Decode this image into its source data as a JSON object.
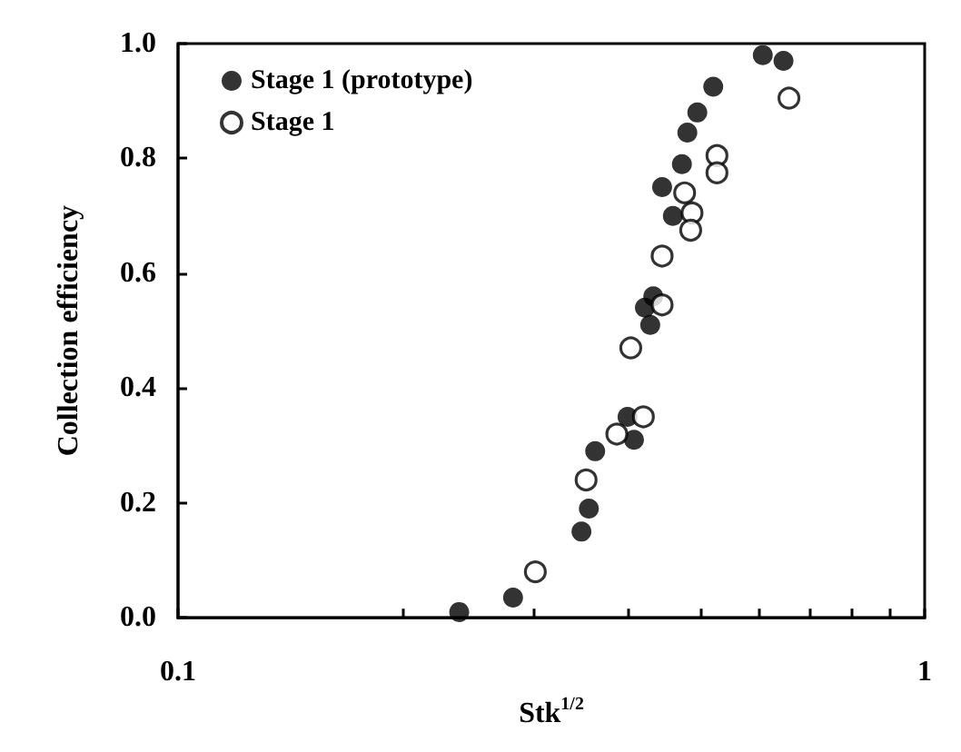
{
  "chart_data": {
    "type": "scatter",
    "xlabel": "Stk$^{1/2}$",
    "ylabel": "Collection efficiency",
    "log": "x",
    "xlim": [
      0.1,
      1
    ],
    "ylim": [
      0,
      1
    ],
    "xticks": [
      0.1,
      {
        "value": 0.2,
        "label": null
      },
      {
        "value": 0.3,
        "label": null
      },
      {
        "value": 0.4,
        "label": null
      },
      {
        "value": 0.5,
        "label": null
      },
      {
        "value": 0.6,
        "label": null
      },
      {
        "value": 0.7,
        "label": null
      },
      {
        "value": 0.8,
        "label": null
      },
      {
        "value": 0.9,
        "label": null
      },
      1
    ],
    "yticks": [
      {
        "value": 0,
        "label": "0.0"
      },
      0.2,
      0.4,
      0.6,
      0.8,
      {
        "value": 1,
        "label": "1.0"
      }
    ],
    "grid": false,
    "legend": "top left",
    "marker": "circle",
    "series": [
      {
        "name": "Stage 1 (prototype)",
        "color": "#000000",
        "x": [
          0.238,
          0.281,
          0.347,
          0.355,
          0.362,
          0.4,
          0.408,
          0.429,
          0.422,
          0.433,
          0.445,
          0.46,
          0.473,
          0.481,
          0.496,
          0.521,
          0.607,
          0.647
        ],
        "values": [
          0.01,
          0.035,
          0.15,
          0.19,
          0.29,
          0.35,
          0.31,
          0.51,
          0.54,
          0.56,
          0.75,
          0.7,
          0.79,
          0.845,
          0.88,
          0.925,
          0.98,
          0.97
        ]
      },
      {
        "name": "Stage 1",
        "color": "#000000",
        "x": [
          0.301,
          0.352,
          0.387,
          0.42,
          0.404,
          0.445,
          0.445,
          0.477,
          0.488,
          0.486,
          0.527,
          0.527,
          0.658
        ],
        "values": [
          0.08,
          0.24,
          0.32,
          0.35,
          0.47,
          0.545,
          0.63,
          0.74,
          0.705,
          0.675,
          0.805,
          0.775,
          0.905
        ]
      }
    ]
  }
}
